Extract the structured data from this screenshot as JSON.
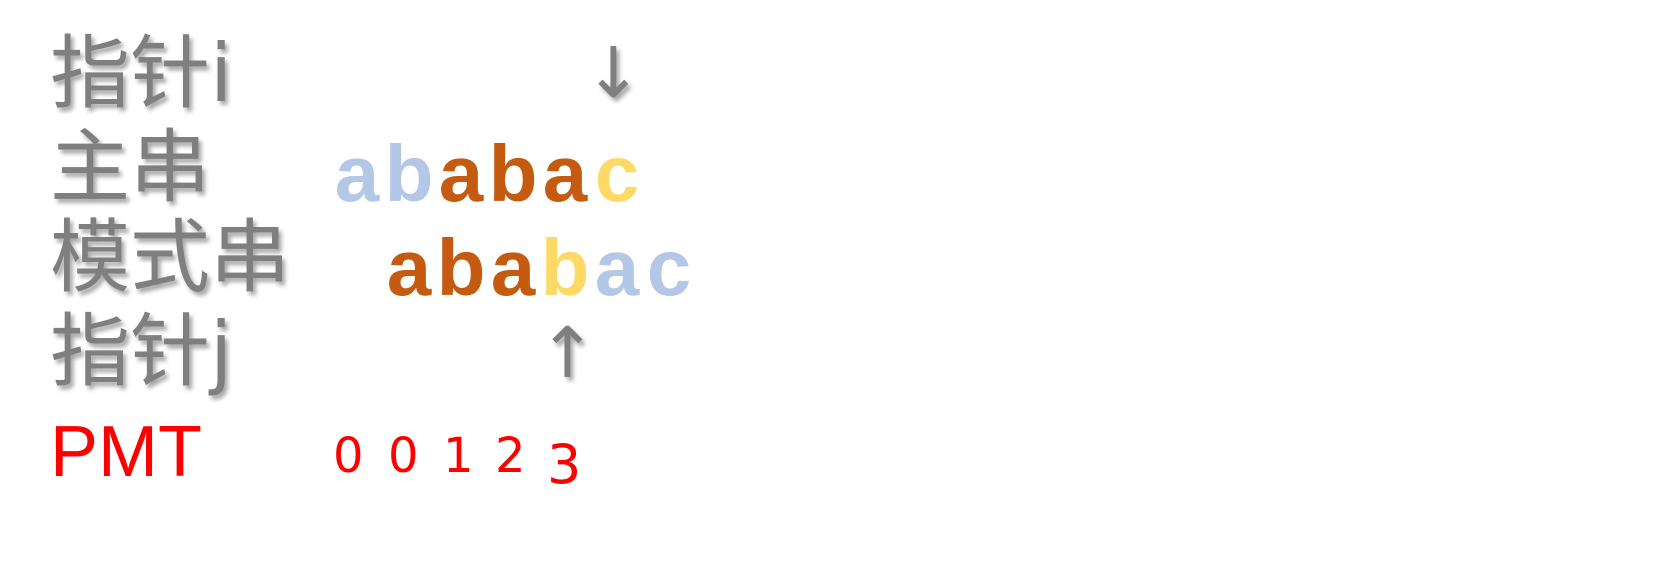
{
  "labels": {
    "pointer_i": "指针i",
    "main_string": "主串",
    "pattern_string": "模式串",
    "pointer_j": "指针j",
    "pmt": "PMT"
  },
  "arrows": {
    "down": "↓",
    "up": "↑"
  },
  "main_string": {
    "chars": [
      "a",
      "b",
      "a",
      "b",
      "a",
      "c"
    ],
    "colors": [
      "#b4c7e7",
      "#b4c7e7",
      "#c55a11",
      "#c55a11",
      "#c55a11",
      "#ffd966"
    ]
  },
  "pattern_string": {
    "chars": [
      "a",
      "b",
      "a",
      "b",
      "a",
      "c"
    ],
    "colors": [
      "#c55a11",
      "#c55a11",
      "#c55a11",
      "#ffd966",
      "#b4c7e7",
      "#b4c7e7"
    ]
  },
  "pmt_values": [
    "0",
    "0",
    "1",
    "2",
    "3"
  ],
  "colors": {
    "label": "#7f7f7f",
    "pmt": "#ff0000",
    "matched_before": "#b4c7e7",
    "matched": "#c55a11",
    "current": "#ffd966"
  }
}
